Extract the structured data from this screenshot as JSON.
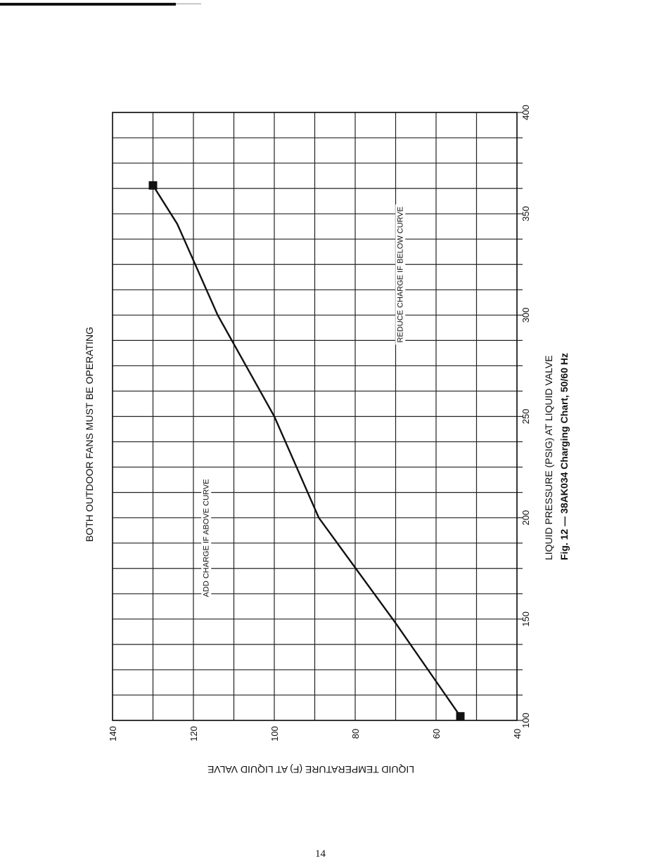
{
  "header": {
    "banner": "BOTH OUTDOOR FANS MUST BE OPERATING"
  },
  "figure": {
    "caption": "Fig. 12 — 38AK034 Charging Chart, 50/60 Hz"
  },
  "page": {
    "number": "14"
  },
  "chart_data": {
    "type": "line",
    "title": "",
    "xlabel": "LIQUID PRESSURE (PSIG) AT LIQUID VALVE",
    "ylabel": "LIQUID TEMPERATURE (F) AT LIQUID VALVE",
    "xlim": [
      100,
      400
    ],
    "ylim": [
      40,
      140
    ],
    "x_ticks": [
      100,
      150,
      200,
      250,
      300,
      350,
      400
    ],
    "y_ticks": [
      40,
      60,
      80,
      100,
      120,
      140
    ],
    "x_tick_labels": [
      "100",
      "150",
      "200",
      "250",
      "300",
      "350",
      "400"
    ],
    "y_tick_labels": [
      "40",
      "60",
      "80",
      "100",
      "120",
      "140"
    ],
    "grid": true,
    "x_minor_step": 12.5,
    "y_minor_step": 10,
    "orientation": "rotated 90° counter-clockwise on the page",
    "series": [
      {
        "points": [
          {
            "x": 102,
            "y": 54
          },
          {
            "x": 148,
            "y": 70
          },
          {
            "x": 200,
            "y": 89
          },
          {
            "x": 250,
            "y": 100
          },
          {
            "x": 300,
            "y": 114
          },
          {
            "x": 345,
            "y": 124
          },
          {
            "x": 364,
            "y": 130
          }
        ],
        "endpoint_markers": "filled-square",
        "color": "#111111"
      }
    ],
    "annotations": [
      {
        "text": "ADD CHARGE IF ABOVE CURVE",
        "x": 190,
        "y": 117
      },
      {
        "text": "REDUCE CHARGE IF BELOW CURVE",
        "x": 320,
        "y": 69
      }
    ]
  }
}
